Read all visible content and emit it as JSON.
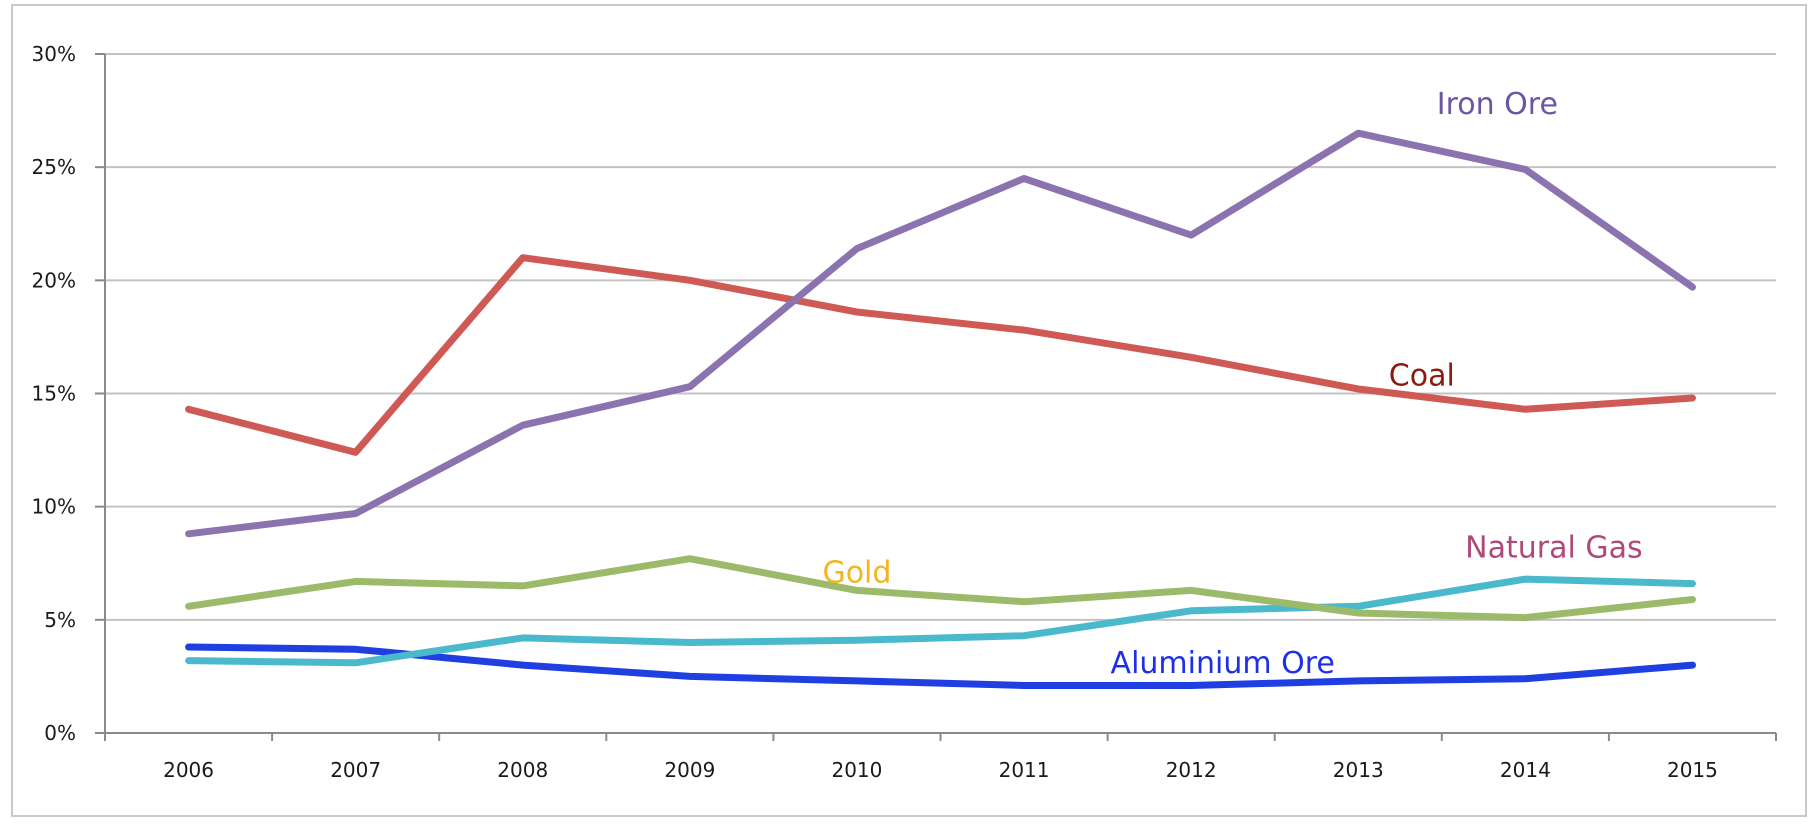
{
  "chart_data": {
    "type": "line",
    "title": "",
    "xlabel": "",
    "ylabel": "",
    "x": [
      "2006",
      "2007",
      "2008",
      "2009",
      "2010",
      "2011",
      "2012",
      "2013",
      "2014",
      "2015"
    ],
    "ylim": [
      0,
      30
    ],
    "y_ticks": [
      0,
      5,
      10,
      15,
      20,
      25,
      30
    ],
    "y_tick_labels": [
      "0%",
      "5%",
      "10%",
      "15%",
      "20%",
      "25%",
      "30%"
    ],
    "grid": true,
    "legend": "none (series labelled inline)",
    "series": [
      {
        "name": "Iron Ore",
        "color": "#8b73b0",
        "label_color": "#6a56a3",
        "values": [
          8.8,
          9.7,
          13.6,
          15.3,
          21.4,
          24.5,
          22.0,
          26.5,
          24.9,
          19.7
        ]
      },
      {
        "name": "Coal",
        "color": "#cf5a55",
        "label_color": "#8b1a10",
        "values": [
          14.3,
          12.4,
          21.0,
          20.0,
          18.6,
          17.8,
          16.6,
          15.2,
          14.3,
          14.8
        ]
      },
      {
        "name": "Gold",
        "color": "#9bbb6a",
        "label_color": "#f2b51e",
        "values": [
          5.6,
          6.7,
          6.5,
          7.7,
          6.3,
          5.8,
          6.3,
          5.3,
          5.1,
          5.9
        ]
      },
      {
        "name": "Natural Gas",
        "color": "#4bb9cc",
        "label_color": "#b0497a",
        "values": [
          3.2,
          3.1,
          4.2,
          4.0,
          4.1,
          4.3,
          5.4,
          5.6,
          6.8,
          6.6
        ]
      },
      {
        "name": "Aluminium Ore",
        "color": "#1f3fe0",
        "label_color": "#1f2fe8",
        "values": [
          3.8,
          3.7,
          3.0,
          2.5,
          2.3,
          2.1,
          2.1,
          2.3,
          2.4,
          3.0
        ]
      }
    ]
  }
}
